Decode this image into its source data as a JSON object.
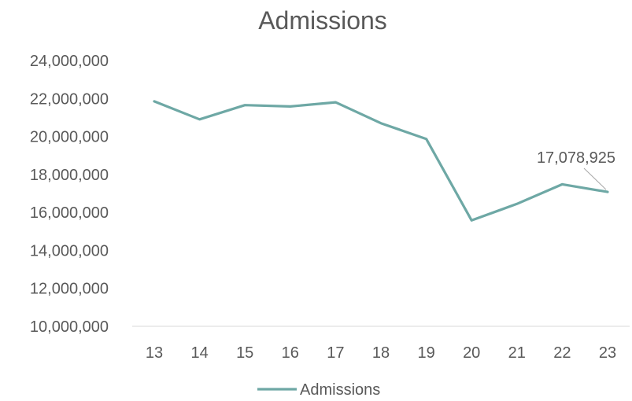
{
  "chart_data": {
    "type": "line",
    "title": "Admissions",
    "xlabel": "",
    "ylabel": "",
    "categories": [
      "13",
      "14",
      "15",
      "16",
      "17",
      "18",
      "19",
      "20",
      "21",
      "22",
      "23"
    ],
    "series": [
      {
        "name": "Admissions",
        "color": "#6ea8a5",
        "values": [
          21850000,
          20900000,
          21650000,
          21580000,
          21800000,
          20700000,
          19870000,
          15580000,
          16450000,
          17480000,
          17078925
        ]
      }
    ],
    "y_ticks": [
      "24,000,000",
      "22,000,000",
      "20,000,000",
      "18,000,000",
      "16,000,000",
      "14,000,000",
      "12,000,000",
      "10,000,000"
    ],
    "ylim": [
      10000000,
      24000000
    ],
    "grid": false,
    "legend": "bottom-center",
    "annotation": {
      "category": "23",
      "label": "17,078,925"
    },
    "text_color": "#595959",
    "axis_color": "#d9d9d9"
  }
}
